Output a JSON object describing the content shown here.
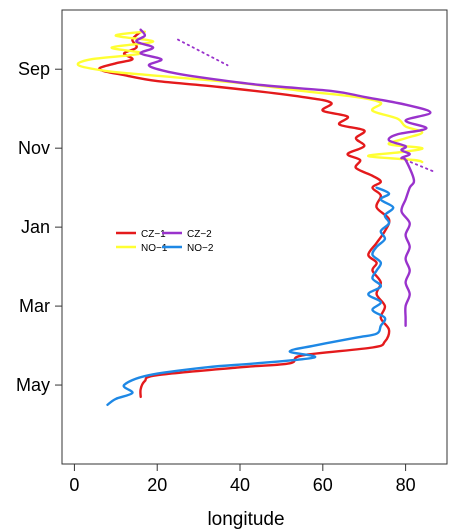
{
  "chart_data": {
    "type": "line",
    "xlabel": "longitude",
    "ylabel": "",
    "xlim": [
      -3,
      90
    ],
    "ylim": [
      -0.5,
      11.0
    ],
    "x_ticks": [
      0,
      20,
      40,
      60,
      80
    ],
    "y_ticks": [
      {
        "label": "Sep",
        "value": 1.0
      },
      {
        "label": "Nov",
        "value": 3.0
      },
      {
        "label": "Jan",
        "value": 5.0
      },
      {
        "label": "Mar",
        "value": 7.0
      },
      {
        "label": "May",
        "value": 9.0
      }
    ],
    "grid": false,
    "legend_position": "left-center",
    "series": [
      {
        "name": "CZ−1",
        "color": "#e41a1c",
        "points": [
          [
            16,
            0.05
          ],
          [
            14,
            0.25
          ],
          [
            15,
            0.45
          ],
          [
            12,
            0.6
          ],
          [
            14,
            0.75
          ],
          [
            10,
            0.85
          ],
          [
            6,
            1.0
          ],
          [
            12,
            1.15
          ],
          [
            20,
            1.3
          ],
          [
            35,
            1.45
          ],
          [
            55,
            1.7
          ],
          [
            62,
            1.85
          ],
          [
            60,
            2.05
          ],
          [
            66,
            2.2
          ],
          [
            64,
            2.4
          ],
          [
            70,
            2.55
          ],
          [
            68,
            2.75
          ],
          [
            70,
            2.95
          ],
          [
            66,
            3.15
          ],
          [
            69,
            3.3
          ],
          [
            68,
            3.5
          ],
          [
            72,
            3.7
          ],
          [
            74,
            3.85
          ],
          [
            72,
            4.0
          ],
          [
            74,
            4.2
          ],
          [
            73,
            4.5
          ],
          [
            76,
            4.8
          ],
          [
            75,
            5.1
          ],
          [
            73,
            5.4
          ],
          [
            71,
            5.7
          ],
          [
            73,
            5.9
          ],
          [
            72,
            6.1
          ],
          [
            74,
            6.4
          ],
          [
            73,
            6.7
          ],
          [
            75,
            7.0
          ],
          [
            74,
            7.3
          ],
          [
            76,
            7.6
          ],
          [
            75,
            7.9
          ],
          [
            72,
            8.05
          ],
          [
            55,
            8.25
          ],
          [
            52,
            8.45
          ],
          [
            40,
            8.55
          ],
          [
            20,
            8.75
          ],
          [
            17,
            8.9
          ],
          [
            16,
            9.1
          ],
          [
            16,
            9.3
          ]
        ]
      },
      {
        "name": "NO−1",
        "color": "#ffff33",
        "points": [
          [
            17,
            0.05
          ],
          [
            10,
            0.15
          ],
          [
            19,
            0.3
          ],
          [
            9,
            0.45
          ],
          [
            16,
            0.6
          ],
          [
            4,
            0.75
          ],
          [
            1,
            0.9
          ],
          [
            8,
            1.05
          ],
          [
            18,
            1.15
          ],
          [
            40,
            1.35
          ],
          [
            55,
            1.55
          ],
          [
            68,
            1.7
          ],
          [
            74,
            1.85
          ],
          [
            72,
            2.05
          ],
          [
            78,
            2.25
          ],
          [
            80,
            2.45
          ],
          [
            84,
            2.6
          ],
          [
            80,
            2.75
          ],
          [
            76,
            2.9
          ],
          [
            84,
            3.0
          ],
          [
            79,
            3.1
          ],
          [
            71,
            3.2
          ],
          [
            82,
            3.3
          ],
          [
            84,
            3.35
          ]
        ]
      },
      {
        "name": "CZ−2",
        "color": "#9932cc",
        "dotted_segments": [
          [
            [
              25,
              0.25
            ],
            [
              37,
              0.9
            ]
          ],
          [
            [
              80,
              3.3
            ],
            [
              87,
              3.6
            ]
          ]
        ],
        "points": [
          [
            16,
            0.0
          ],
          [
            17,
            0.15
          ],
          [
            15,
            0.3
          ],
          [
            19,
            0.45
          ],
          [
            16,
            0.6
          ],
          [
            21,
            0.75
          ],
          [
            18,
            0.9
          ],
          [
            22,
            1.05
          ],
          [
            30,
            1.2
          ],
          [
            45,
            1.4
          ],
          [
            62,
            1.55
          ],
          [
            70,
            1.7
          ],
          [
            80,
            1.9
          ],
          [
            86,
            2.1
          ],
          [
            80,
            2.3
          ],
          [
            85,
            2.5
          ],
          [
            78,
            2.65
          ],
          [
            76,
            2.8
          ],
          [
            80,
            2.95
          ],
          [
            79,
            3.05
          ],
          [
            81,
            3.15
          ],
          [
            79,
            3.25
          ],
          [
            80,
            3.3
          ],
          [
            82,
            3.8
          ],
          [
            81,
            4.0
          ],
          [
            80,
            4.3
          ],
          [
            79,
            4.6
          ],
          [
            81,
            4.9
          ],
          [
            80,
            5.2
          ],
          [
            81,
            5.5
          ],
          [
            80,
            5.8
          ],
          [
            81,
            6.1
          ],
          [
            80,
            6.4
          ],
          [
            81,
            6.7
          ],
          [
            80,
            7.0
          ],
          [
            80,
            7.3
          ],
          [
            80,
            7.5
          ]
        ]
      },
      {
        "name": "NO−2",
        "color": "#1e88e5",
        "points": [
          [
            73,
            4.0
          ],
          [
            76,
            4.15
          ],
          [
            74,
            4.3
          ],
          [
            77,
            4.5
          ],
          [
            75,
            4.7
          ],
          [
            76,
            4.9
          ],
          [
            74,
            5.1
          ],
          [
            75,
            5.3
          ],
          [
            73,
            5.5
          ],
          [
            72,
            5.7
          ],
          [
            74,
            5.9
          ],
          [
            73,
            6.1
          ],
          [
            72,
            6.3
          ],
          [
            74,
            6.5
          ],
          [
            71,
            6.7
          ],
          [
            74,
            6.9
          ],
          [
            72,
            7.1
          ],
          [
            75,
            7.3
          ],
          [
            74,
            7.5
          ],
          [
            73,
            7.7
          ],
          [
            68,
            7.8
          ],
          [
            58,
            8.0
          ],
          [
            52,
            8.15
          ],
          [
            58,
            8.3
          ],
          [
            44,
            8.45
          ],
          [
            32,
            8.55
          ],
          [
            18,
            8.75
          ],
          [
            12,
            9.0
          ],
          [
            14,
            9.2
          ],
          [
            10,
            9.35
          ],
          [
            8,
            9.5
          ]
        ]
      }
    ]
  }
}
